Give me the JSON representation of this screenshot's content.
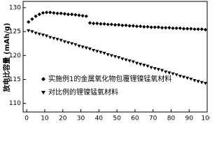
{
  "chart_data": {
    "type": "scatter",
    "ylabel": "放电比容量 (mAh/g)",
    "x": [
      1,
      3,
      5,
      7,
      9,
      11,
      13,
      15,
      17,
      19,
      21,
      23,
      25,
      27,
      29,
      31,
      33,
      35,
      37,
      39,
      41,
      43,
      45,
      47,
      49,
      51,
      53,
      55,
      57,
      59,
      61,
      63,
      65,
      67,
      69,
      71,
      73,
      75,
      77,
      79,
      81,
      83,
      85,
      87,
      89,
      91,
      93,
      95,
      97,
      99
    ],
    "series": [
      {
        "name": "实施例1的金属氧化物包覆锂镍锰氧材料",
        "color": "#000000",
        "marker": "diamond",
        "values": [
          127.0,
          127.6,
          128.2,
          128.6,
          128.9,
          129.0,
          129.0,
          128.9,
          128.8,
          128.8,
          128.7,
          128.6,
          128.6,
          128.5,
          128.4,
          128.3,
          128.2,
          126.8,
          126.7,
          126.7,
          126.6,
          126.6,
          126.5,
          126.5,
          126.4,
          126.4,
          126.3,
          126.3,
          126.2,
          126.2,
          126.1,
          126.1,
          126.0,
          126.0,
          125.9,
          125.9,
          125.9,
          125.8,
          125.8,
          125.8,
          125.7,
          125.7,
          125.7,
          125.6,
          125.6,
          125.6,
          125.5,
          125.5,
          125.5,
          125.4
        ]
      },
      {
        "name": "对比例的锂镍锰氧材料",
        "color": "#000000",
        "marker": "triangle-down",
        "values": [
          125.2,
          125.0,
          124.7,
          124.5,
          124.3,
          124.1,
          123.8,
          123.6,
          123.4,
          123.2,
          122.9,
          122.7,
          122.5,
          122.3,
          122.0,
          121.8,
          121.6,
          121.4,
          121.1,
          120.9,
          120.7,
          120.5,
          120.2,
          120.0,
          119.8,
          119.6,
          119.3,
          119.1,
          118.9,
          118.7,
          118.4,
          118.2,
          118.0,
          117.8,
          117.5,
          117.3,
          117.1,
          116.9,
          116.6,
          116.4,
          116.2,
          116.0,
          115.7,
          115.5,
          115.3,
          115.1,
          114.8,
          114.6,
          114.4,
          114.2
        ]
      }
    ],
    "xlim": [
      -2,
      100
    ],
    "xticks": [
      0,
      10,
      20,
      30,
      40,
      50,
      60,
      70,
      80,
      90,
      100
    ],
    "ylim": [
      108.2,
      131.3
    ],
    "yticks": [
      110,
      115,
      120,
      125,
      130
    ],
    "legend": "lower left"
  }
}
